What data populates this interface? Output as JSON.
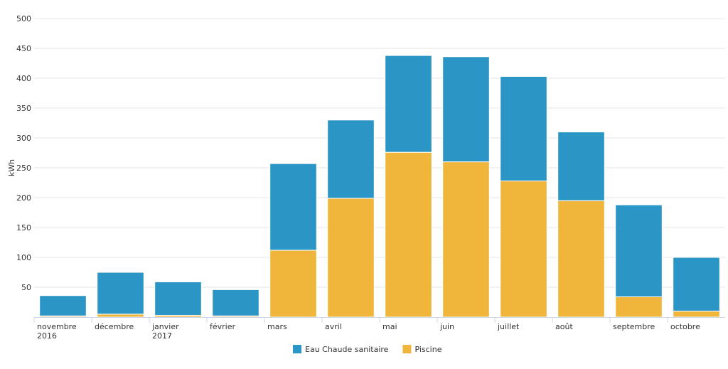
{
  "chart_data": {
    "type": "bar",
    "stacked": true,
    "categories": [
      [
        "novembre",
        "2016"
      ],
      [
        "décembre"
      ],
      [
        "janvier",
        "2017"
      ],
      [
        "février"
      ],
      [
        "mars"
      ],
      [
        "avril"
      ],
      [
        "mai"
      ],
      [
        "juin"
      ],
      [
        "juillet"
      ],
      [
        "août"
      ],
      [
        "septembre"
      ],
      [
        "octobre"
      ]
    ],
    "series": [
      {
        "name": "Piscine",
        "color": "#f0b63c",
        "values": [
          2,
          5,
          3,
          2,
          112,
          199,
          276,
          260,
          228,
          195,
          34,
          10
        ]
      },
      {
        "name": "Eau Chaude sanitaire",
        "color": "#2b95c5",
        "values": [
          34,
          70,
          56,
          44,
          145,
          131,
          162,
          176,
          175,
          115,
          154,
          90
        ]
      }
    ],
    "legend_order": [
      "Eau Chaude sanitaire",
      "Piscine"
    ],
    "title": "",
    "xlabel": "",
    "ylabel": "kWh",
    "ylim": [
      0,
      500
    ],
    "yticks": [
      50,
      100,
      150,
      200,
      250,
      300,
      350,
      400,
      450,
      500
    ],
    "grid": true,
    "legend_position": "bottom-center"
  }
}
